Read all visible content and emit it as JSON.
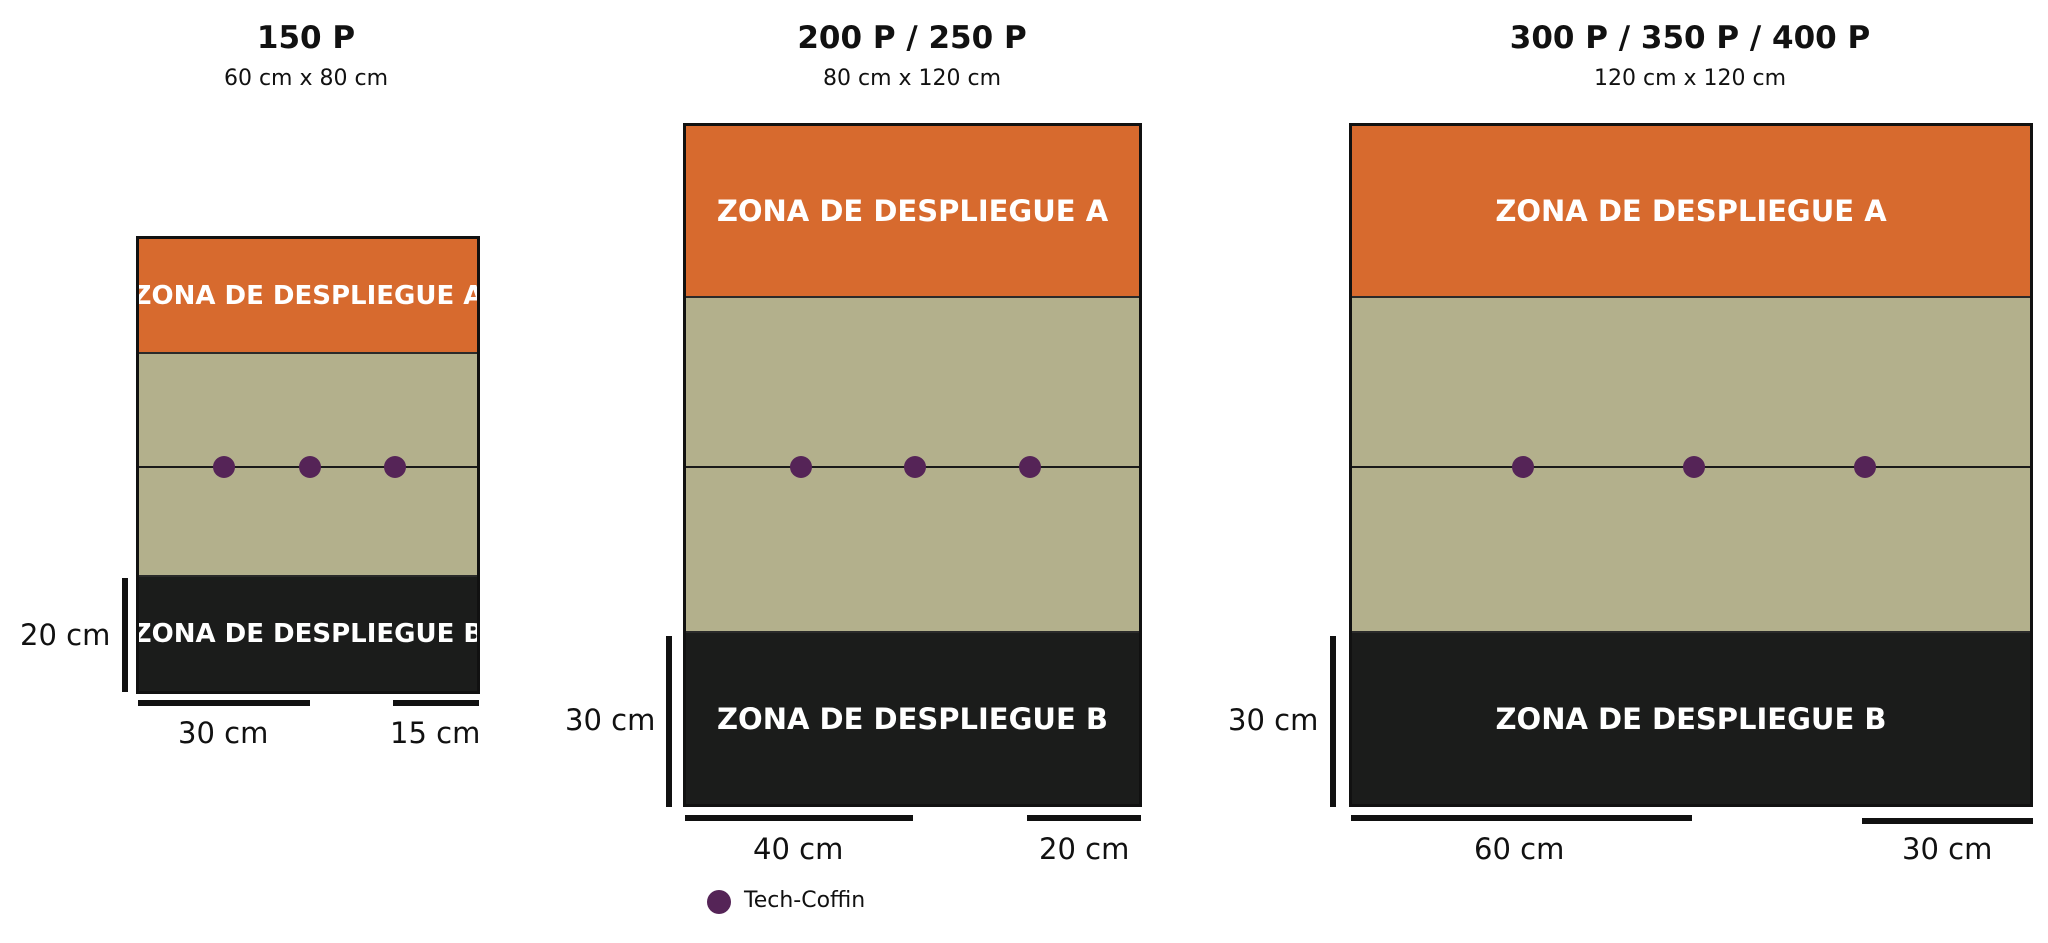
{
  "maps": [
    {
      "title": "150 P",
      "size": "60 cm x 80 cm",
      "zone_a": "ZONA DE DESPLIEGUE A",
      "zone_b": "ZONA DE DESPLIEGUE B",
      "depth_label": "20 cm",
      "spacing_label": "30 cm",
      "edge_label": "15 cm",
      "tokens": 3
    },
    {
      "title": "200 P / 250 P",
      "size": "80 cm x 120 cm",
      "zone_a": "ZONA DE DESPLIEGUE A",
      "zone_b": "ZONA DE DESPLIEGUE B",
      "depth_label": "30 cm",
      "spacing_label": "40 cm",
      "edge_label": "20 cm",
      "tokens": 3
    },
    {
      "title": "300 P / 350 P / 400 P",
      "size": "120 cm x 120 cm",
      "zone_a": "ZONA DE DESPLIEGUE A",
      "zone_b": "ZONA DE DESPLIEGUE B",
      "depth_label": "30 cm",
      "spacing_label": "60 cm",
      "edge_label": "30 cm",
      "tokens": 3
    }
  ],
  "legend": {
    "label": "Tech-Coffin",
    "color": "#552457"
  },
  "colors": {
    "zone_a": "#d76a2e",
    "zone_b": "#1b1c1b",
    "no_mans_land": "#b3b08c"
  }
}
